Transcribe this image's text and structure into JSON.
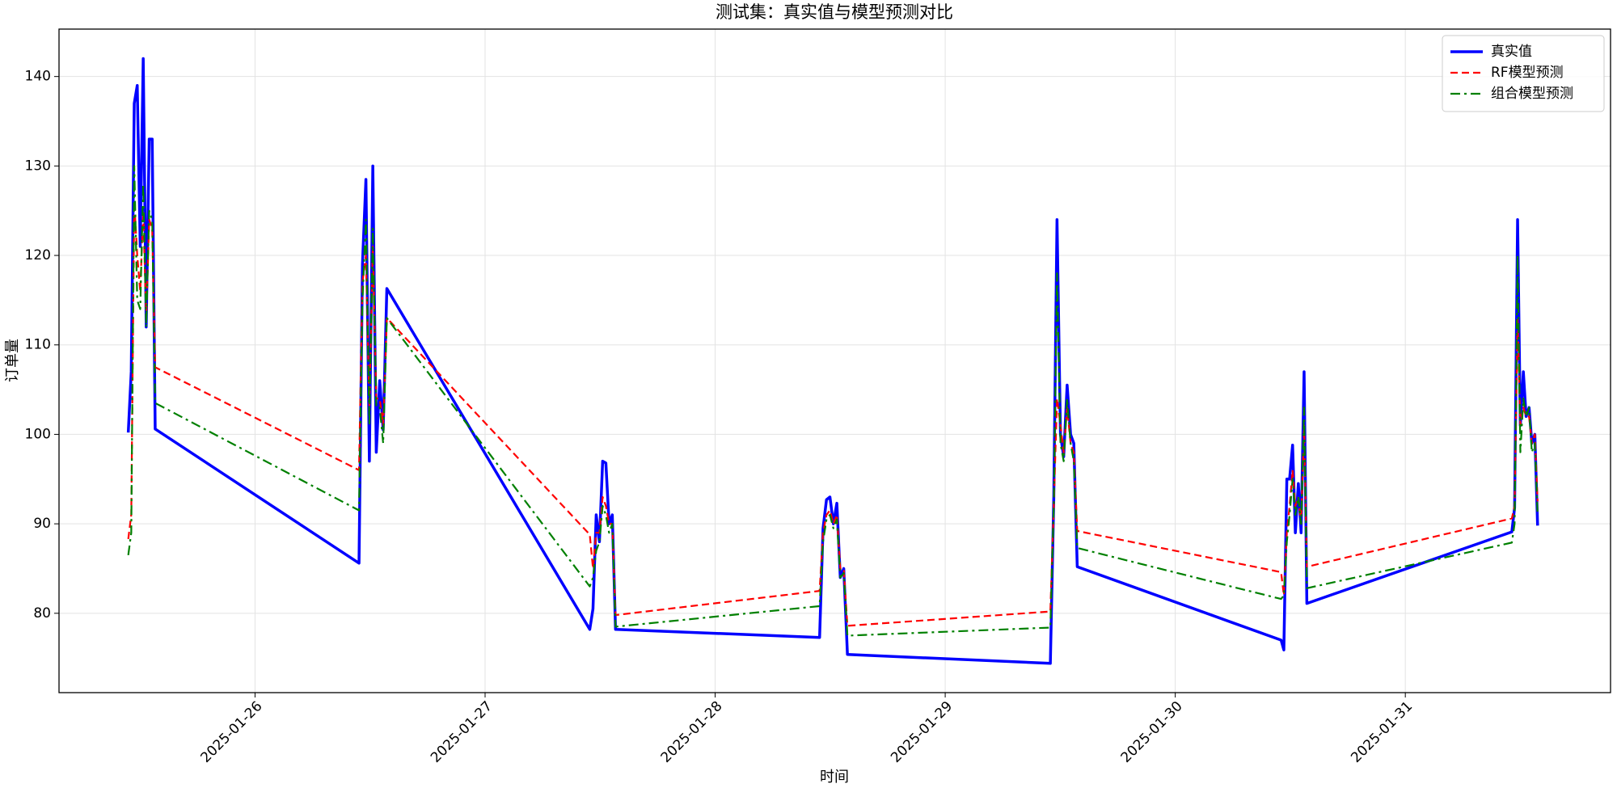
{
  "chart_data": {
    "type": "line",
    "title": "测试集：真实值与模型预测对比",
    "x_label": "时间",
    "y_label": "订单量",
    "x": [
      25.449,
      25.462,
      25.475,
      25.488,
      25.501,
      25.514,
      25.527,
      25.54,
      25.553,
      25.566,
      26.452,
      26.467,
      26.482,
      26.497,
      26.512,
      26.527,
      26.542,
      26.557,
      26.573,
      27.455,
      27.469,
      27.483,
      27.497,
      27.511,
      27.525,
      27.539,
      27.553,
      27.567,
      28.454,
      28.469,
      28.484,
      28.499,
      28.514,
      28.529,
      28.544,
      28.559,
      28.575,
      29.457,
      29.472,
      29.486,
      29.501,
      29.515,
      29.53,
      29.545,
      29.559,
      29.574,
      30.46,
      30.472,
      30.485,
      30.497,
      30.51,
      30.522,
      30.535,
      30.547,
      30.56,
      30.572,
      31.463,
      31.475,
      31.488,
      31.5,
      31.513,
      31.525,
      31.538,
      31.55,
      31.563,
      31.575
    ],
    "series": [
      {
        "name": "真实值",
        "color": "#0000ff",
        "style": "solid",
        "values": [
          100.2,
          107,
          137,
          139,
          121,
          142,
          112,
          133,
          133,
          100.6,
          85.6,
          119,
          128.5,
          97,
          130,
          98,
          106,
          100.5,
          116.3,
          78.2,
          80.5,
          91,
          88,
          97,
          96.8,
          90,
          91,
          78.2,
          77.3,
          89.5,
          92.7,
          93,
          90,
          92.3,
          84,
          85,
          75.4,
          74.4,
          93,
          124,
          100,
          97.5,
          105.5,
          100,
          99,
          85.2,
          77,
          75.9,
          95,
          95,
          98.8,
          89,
          94.5,
          89,
          107,
          81.1,
          89.1,
          91.8,
          124,
          101,
          107,
          102,
          103,
          99,
          100,
          89.8
        ]
      },
      {
        "name": "RF模型预测",
        "color": "#ff0000",
        "style": "dashed",
        "values": [
          88.3,
          91,
          126,
          120,
          116,
          125,
          113,
          124,
          123,
          107.5,
          96,
          117,
          120,
          103,
          121,
          104,
          104,
          101,
          113,
          88.8,
          85,
          89,
          89,
          93,
          92,
          90,
          90,
          79.8,
          82.5,
          89,
          91,
          91.5,
          90,
          91,
          85,
          85,
          78.6,
          80.2,
          92,
          104,
          101,
          98,
          103,
          99,
          98,
          89.2,
          84.6,
          82,
          89,
          92,
          96,
          92,
          93,
          90,
          101,
          85.2,
          90.6,
          92,
          113,
          101,
          103,
          102,
          102,
          99,
          100,
          92.5
        ]
      },
      {
        "name": "组合模型预测",
        "color": "#008000",
        "style": "dashdot",
        "values": [
          86.5,
          89,
          130,
          115,
          114,
          128,
          112,
          125,
          124,
          103.5,
          91.5,
          115,
          124,
          101,
          123,
          103,
          103,
          99,
          113,
          83,
          84,
          87,
          88,
          92,
          91,
          89,
          90,
          78.5,
          80.8,
          88,
          90.5,
          91,
          89.5,
          90.5,
          84,
          84.5,
          77.5,
          78.4,
          92,
          118,
          99,
          97,
          104,
          99,
          97,
          87.3,
          81.6,
          82,
          88,
          91,
          95,
          91,
          93,
          90,
          103,
          82.8,
          87.9,
          90,
          120,
          98,
          104,
          102,
          103,
          98,
          99,
          91
        ]
      }
    ],
    "xlim": [
      25.148,
      31.892
    ],
    "ylim": [
      71.13,
      145.3
    ],
    "xticks": [
      {
        "value": 26,
        "label": "2025-01-26"
      },
      {
        "value": 27,
        "label": "2025-01-27"
      },
      {
        "value": 28,
        "label": "2025-01-28"
      },
      {
        "value": 29,
        "label": "2025-01-29"
      },
      {
        "value": 30,
        "label": "2025-01-30"
      },
      {
        "value": 31,
        "label": "2025-01-31"
      }
    ],
    "yticks": [
      80,
      90,
      100,
      110,
      120,
      130,
      140
    ],
    "grid": true,
    "legend": "upper right"
  }
}
